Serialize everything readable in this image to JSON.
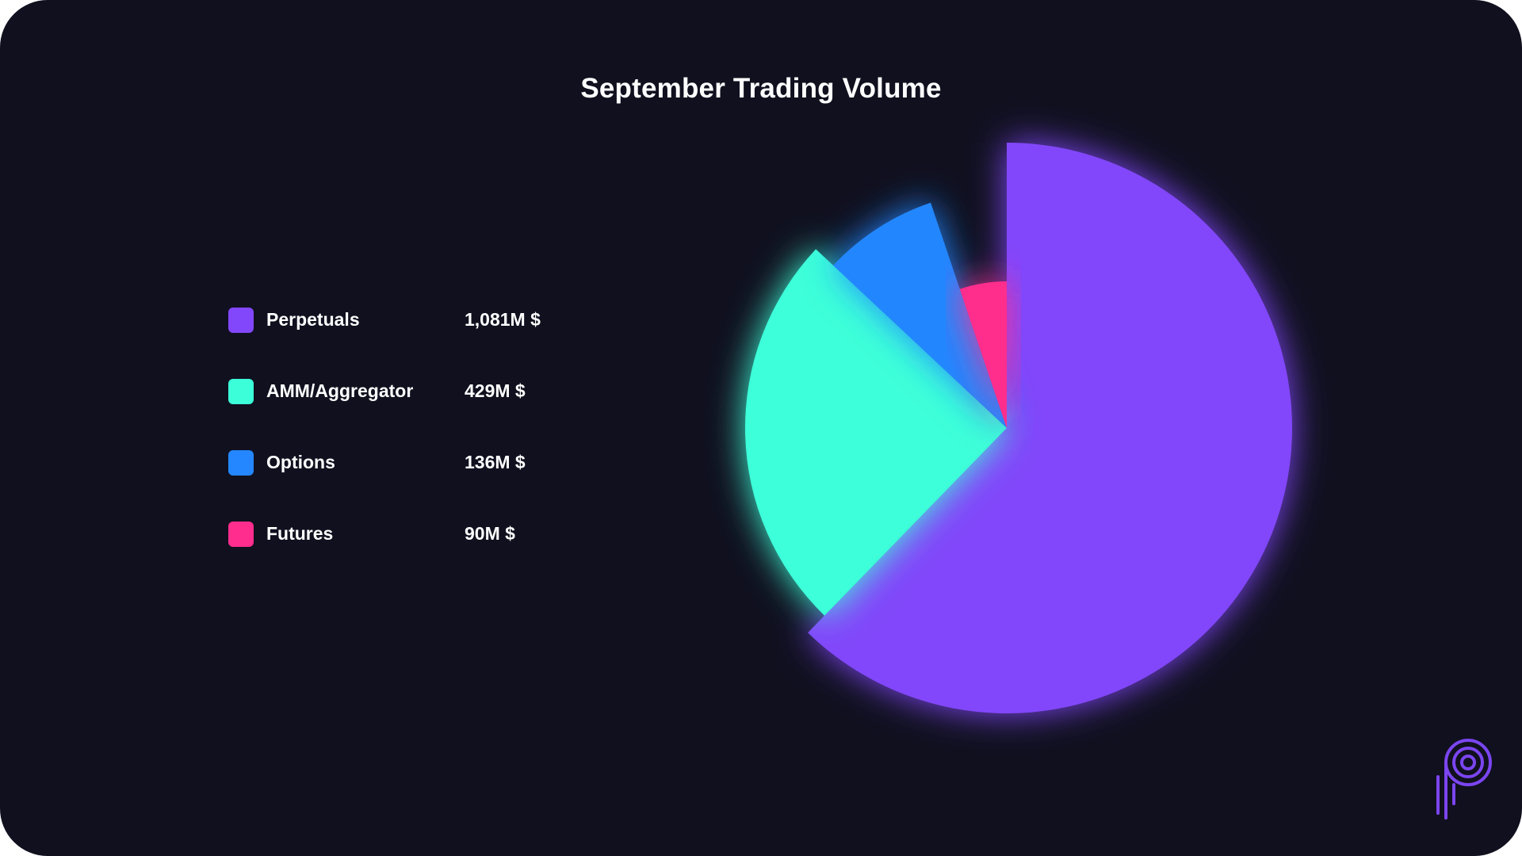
{
  "colors": {
    "background": "#10101f",
    "perpetuals": "#8247fa",
    "amm": "#3cffd9",
    "options": "#2487ff",
    "futures": "#ff2d8d",
    "logo": "#7b45f0"
  },
  "logo": {
    "icon": "brand-p-logo-icon"
  },
  "chart_data": {
    "type": "pie",
    "title": "September Trading Volume",
    "unit": "M $",
    "legend_position": "left",
    "slices": [
      {
        "label": "Perpetuals",
        "value": 1081,
        "display": "1,081M $",
        "color": "#8247fa"
      },
      {
        "label": "AMM/Aggregator",
        "value": 429,
        "display": "429M $",
        "color": "#3cffd9"
      },
      {
        "label": "Options",
        "value": 136,
        "display": "136M $",
        "color": "#2487ff"
      },
      {
        "label": "Futures",
        "value": 90,
        "display": "90M $",
        "color": "#ff2d8d"
      }
    ]
  }
}
